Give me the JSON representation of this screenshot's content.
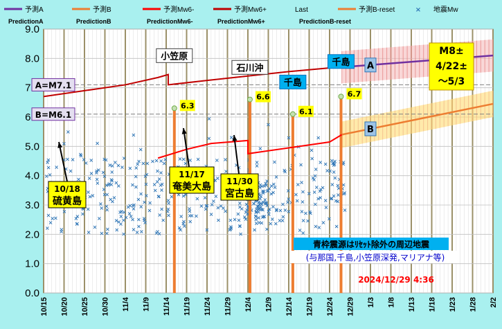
{
  "chart_data": {
    "type": "scatter",
    "ylim": [
      0,
      9
    ],
    "yticks": [
      "0.0",
      "1.0",
      "2.0",
      "3.0",
      "4.0",
      "5.0",
      "6.0",
      "7.0",
      "8.0",
      "9.0"
    ],
    "xlim_days": [
      0,
      110
    ],
    "xticks": [
      "10/15",
      "10/20",
      "10/25",
      "10/30",
      "11/4",
      "11/9",
      "11/14",
      "11/19",
      "11/24",
      "11/29",
      "12/4",
      "12/9",
      "12/14",
      "12/19",
      "12/24",
      "12/29",
      "1/3",
      "1/8",
      "1/13",
      "1/18",
      "1/23",
      "1/28",
      "2/2"
    ],
    "legend": [
      {
        "name": "予測A",
        "sub": "PredictionA",
        "color": "#7030a0"
      },
      {
        "name": "予測B",
        "sub": "PredictionB",
        "color": "#ed7d31"
      },
      {
        "name": "予測Mw6-",
        "sub": "PredictionMw6-",
        "color": "#ff0000"
      },
      {
        "name": "予測Mw6+",
        "sub": "PredictionMw6+",
        "color": "#c00000"
      },
      {
        "name": "Last",
        "sub": "PredictionB-reset",
        "color": "#ffffff"
      },
      {
        "name": "予測B-reset",
        "sub": "",
        "color": "#ed7d31"
      },
      {
        "name": "地震Mw",
        "sub": "",
        "color": "#2e75b6"
      }
    ],
    "reference_lines": [
      {
        "label": "A=M7.1",
        "y": 7.1
      },
      {
        "label": "B=M6.1",
        "y": 6.1
      }
    ],
    "series": {
      "mw6_plus": [
        [
          0,
          6.7
        ],
        [
          10,
          6.9
        ],
        [
          20,
          7.1
        ],
        [
          28,
          7.35
        ],
        [
          30.5,
          7.45
        ],
        [
          30.5,
          7.1
        ],
        [
          40,
          7.25
        ],
        [
          50,
          7.4
        ],
        [
          60,
          7.55
        ],
        [
          72,
          7.7
        ]
      ],
      "mw6_minus": [
        [
          28,
          4.6
        ],
        [
          35,
          4.9
        ],
        [
          41,
          5.1
        ],
        [
          50,
          5.2
        ],
        [
          50,
          4.75
        ],
        [
          60,
          4.95
        ],
        [
          70,
          5.15
        ],
        [
          73,
          5.4
        ]
      ],
      "prediction_a": [
        [
          73,
          7.7
        ],
        [
          110,
          8.1
        ]
      ],
      "prediction_b": [
        [
          73,
          5.4
        ],
        [
          110,
          6.45
        ]
      ]
    },
    "large_quakes": [
      {
        "x": 32,
        "mag": 6.3,
        "label": "6.3"
      },
      {
        "x": 50.5,
        "mag": 6.6,
        "label": "6.6"
      },
      {
        "x": 61,
        "mag": 6.1,
        "label": "6.1"
      },
      {
        "x": 72.8,
        "mag": 6.7,
        "label": "6.7"
      }
    ],
    "region_labels": [
      {
        "text": "小笠原",
        "x": 32,
        "y": 8.0
      },
      {
        "text": "石川沖",
        "x": 50.5,
        "y": 7.6
      },
      {
        "text": "千島",
        "x": 61,
        "y": 7.1
      },
      {
        "text": "千島",
        "x": 72.8,
        "y": 7.8
      }
    ],
    "annotations": [
      {
        "date": "10/18",
        "place": "硫黄島"
      },
      {
        "date": "11/17",
        "place": "奄美大島"
      },
      {
        "date": "11/30",
        "place": "宮古島"
      }
    ],
    "forecast_note": [
      "M8±",
      "4/22±",
      "～5/3"
    ],
    "series_tags": [
      "A",
      "B"
    ],
    "note_title": "青枠震源はﾘｾｯﾄ除外の周辺地震",
    "note_sub": "(与那国,千島,小笠原深発,マリアナ等)",
    "timestamp": "2024/12/29 4:36"
  },
  "colors": {
    "background": "#a9f0ef",
    "plot_area": "#ffffff",
    "grid_major": "#9b9068",
    "point": "#2e75b6",
    "bar": "#ed7d31",
    "timestamp": "#ff0000",
    "label_yellow": "#ffff00",
    "label_cyan": "#00b0f0"
  }
}
